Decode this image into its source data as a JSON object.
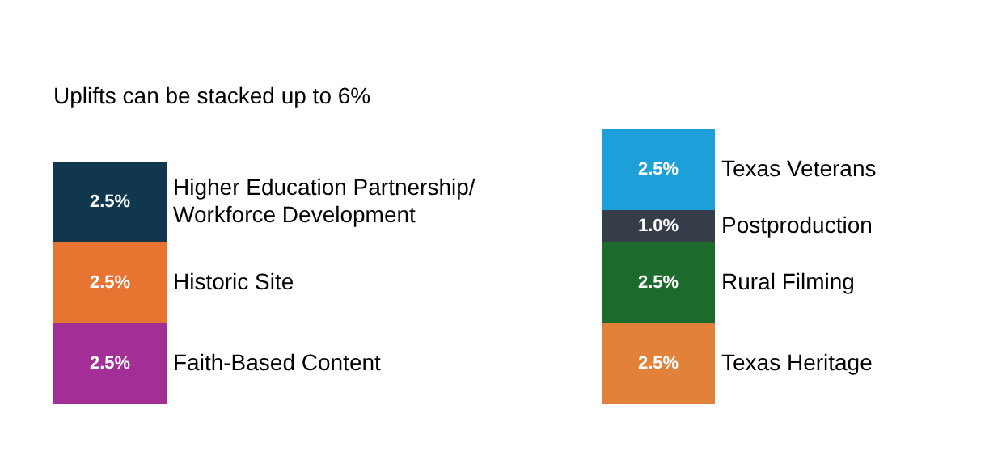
{
  "chart_data": {
    "type": "bar",
    "title": "Uplifts can be stacked up to 6%",
    "categories": [
      null,
      null
    ],
    "stacked": true,
    "tick_labels": false,
    "grid": false,
    "legend": false,
    "series": [
      {
        "name": "Faith-Based Content",
        "color": "#a32e96",
        "values": [
          2.5,
          null
        ],
        "value_labels": [
          "2.5%",
          null
        ]
      },
      {
        "name": "Historic Site",
        "color": "#e87432",
        "values": [
          2.5,
          null
        ],
        "value_labels": [
          "2.5%",
          null
        ]
      },
      {
        "name": "Higher Education Partnership/\nWorkforce Development",
        "color": "#11374f",
        "values": [
          2.5,
          null
        ],
        "value_labels": [
          "2.5%",
          null
        ]
      },
      {
        "name": "Texas Heritage",
        "color": "#e2823a",
        "values": [
          null,
          2.5
        ],
        "value_labels": [
          null,
          "2.5%"
        ]
      },
      {
        "name": "Rural Filming",
        "color": "#1d6a2d",
        "values": [
          null,
          2.5
        ],
        "value_labels": [
          null,
          "2.5%"
        ]
      },
      {
        "name": "Postproduction",
        "color": "#343d48",
        "values": [
          null,
          1.0
        ],
        "value_labels": [
          null,
          "1.0%"
        ]
      },
      {
        "name": "Texas Veterans",
        "color": "#1d9fd9",
        "values": [
          null,
          2.5
        ],
        "value_labels": [
          null,
          "2.5%"
        ]
      }
    ]
  }
}
